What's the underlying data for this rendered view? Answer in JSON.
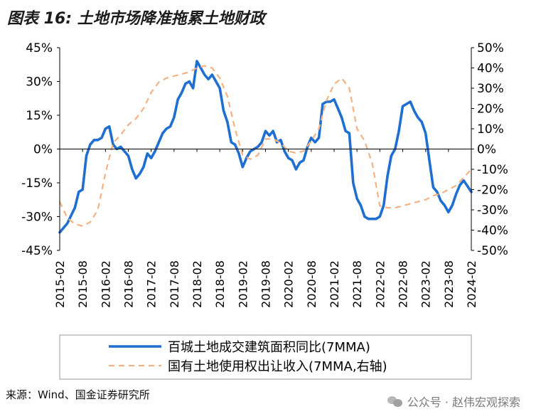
{
  "figure": {
    "title": "图表 16: 土地市场降准拖累土地财政",
    "source": "来源：Wind、国金证券研究所",
    "watermark": "公众号 · 赵伟宏观探索",
    "watermark_icon": "wechat-icon"
  },
  "colors": {
    "series1": "#1e6fd0",
    "series2": "#f4b183",
    "axis": "#000000",
    "border": "#9a9a9a"
  },
  "chart_data": {
    "type": "line",
    "x": [
      "2015-02",
      "2015-08",
      "2016-02",
      "2016-08",
      "2017-02",
      "2017-08",
      "2018-02",
      "2018-08",
      "2019-02",
      "2019-08",
      "2020-02",
      "2020-08",
      "2021-02",
      "2021-08",
      "2022-02",
      "2022-08",
      "2023-02",
      "2023-08",
      "2024-02"
    ],
    "x_start": "2015-02",
    "x_end": "2024-02",
    "y_left": {
      "ticks": [
        "45%",
        "30%",
        "15%",
        "0%",
        "-15%",
        "-30%",
        "-45%"
      ],
      "ylim": [
        -45,
        45
      ]
    },
    "y_right": {
      "ticks": [
        "50%",
        "40%",
        "30%",
        "20%",
        "10%",
        "0%",
        "-10%",
        "-20%",
        "-30%",
        "-40%",
        "-50%"
      ],
      "ylim": [
        -50,
        50
      ]
    },
    "series": [
      {
        "name": "百城土地成交建筑面积同比(7MMA)",
        "axis": "left",
        "style": "solid",
        "points": [
          [
            "2015-02",
            -37
          ],
          [
            "2015-04",
            -33
          ],
          [
            "2015-06",
            -26
          ],
          [
            "2015-07",
            -19
          ],
          [
            "2015-08",
            -18
          ],
          [
            "2015-09",
            -3
          ],
          [
            "2015-10",
            2
          ],
          [
            "2015-11",
            4
          ],
          [
            "2015-12",
            4
          ],
          [
            "2016-01",
            5
          ],
          [
            "2016-02",
            9
          ],
          [
            "2016-03",
            10
          ],
          [
            "2016-04",
            2
          ],
          [
            "2016-05",
            0
          ],
          [
            "2016-06",
            1
          ],
          [
            "2016-07",
            -1
          ],
          [
            "2016-08",
            -3
          ],
          [
            "2016-09",
            -9
          ],
          [
            "2016-10",
            -13
          ],
          [
            "2016-11",
            -11
          ],
          [
            "2016-12",
            -8
          ],
          [
            "2017-01",
            -2
          ],
          [
            "2017-02",
            -4
          ],
          [
            "2017-03",
            -1
          ],
          [
            "2017-04",
            3
          ],
          [
            "2017-05",
            7
          ],
          [
            "2017-06",
            9
          ],
          [
            "2017-07",
            10
          ],
          [
            "2017-08",
            14
          ],
          [
            "2017-09",
            22
          ],
          [
            "2017-10",
            25
          ],
          [
            "2017-11",
            29
          ],
          [
            "2017-12",
            30
          ],
          [
            "2018-01",
            27
          ],
          [
            "2018-02",
            39
          ],
          [
            "2018-03",
            36
          ],
          [
            "2018-04",
            33
          ],
          [
            "2018-05",
            31
          ],
          [
            "2018-06",
            33
          ],
          [
            "2018-07",
            30
          ],
          [
            "2018-08",
            27
          ],
          [
            "2018-09",
            17
          ],
          [
            "2018-10",
            12
          ],
          [
            "2018-11",
            3
          ],
          [
            "2018-12",
            2
          ],
          [
            "2019-01",
            -2
          ],
          [
            "2019-02",
            -8
          ],
          [
            "2019-03",
            -4
          ],
          [
            "2019-04",
            -1
          ],
          [
            "2019-05",
            0
          ],
          [
            "2019-06",
            1
          ],
          [
            "2019-07",
            3
          ],
          [
            "2019-08",
            8
          ],
          [
            "2019-09",
            6
          ],
          [
            "2019-10",
            8
          ],
          [
            "2019-11",
            3
          ],
          [
            "2019-12",
            4
          ],
          [
            "2020-01",
            -1
          ],
          [
            "2020-02",
            -4
          ],
          [
            "2020-03",
            -5
          ],
          [
            "2020-04",
            -9
          ],
          [
            "2020-05",
            -6
          ],
          [
            "2020-06",
            -5
          ],
          [
            "2020-07",
            1
          ],
          [
            "2020-08",
            5
          ],
          [
            "2020-09",
            3
          ],
          [
            "2020-10",
            5
          ],
          [
            "2020-11",
            20
          ],
          [
            "2020-12",
            21
          ],
          [
            "2021-01",
            21
          ],
          [
            "2021-02",
            22
          ],
          [
            "2021-03",
            18
          ],
          [
            "2021-04",
            14
          ],
          [
            "2021-05",
            8
          ],
          [
            "2021-06",
            7
          ],
          [
            "2021-07",
            -15
          ],
          [
            "2021-08",
            -22
          ],
          [
            "2021-09",
            -25
          ],
          [
            "2021-10",
            -30
          ],
          [
            "2021-11",
            -31
          ],
          [
            "2021-12",
            -31
          ],
          [
            "2022-01",
            -31
          ],
          [
            "2022-02",
            -30
          ],
          [
            "2022-03",
            -25
          ],
          [
            "2022-04",
            -12
          ],
          [
            "2022-05",
            -3
          ],
          [
            "2022-06",
            0
          ],
          [
            "2022-07",
            8
          ],
          [
            "2022-08",
            19
          ],
          [
            "2022-09",
            20
          ],
          [
            "2022-10",
            21
          ],
          [
            "2022-11",
            17
          ],
          [
            "2022-12",
            14
          ],
          [
            "2023-01",
            12
          ],
          [
            "2023-02",
            7
          ],
          [
            "2023-03",
            -5
          ],
          [
            "2023-04",
            -17
          ],
          [
            "2023-05",
            -19
          ],
          [
            "2023-06",
            -23
          ],
          [
            "2023-07",
            -25
          ],
          [
            "2023-08",
            -28
          ],
          [
            "2023-09",
            -25
          ],
          [
            "2023-10",
            -20
          ],
          [
            "2023-11",
            -16
          ],
          [
            "2023-12",
            -14
          ],
          [
            "2024-02",
            -19
          ]
        ]
      },
      {
        "name": "国有土地使用权出让收入(7MMA,右轴)",
        "axis": "right",
        "style": "dashed",
        "points": [
          [
            "2015-02",
            -26
          ],
          [
            "2015-04",
            -34
          ],
          [
            "2015-06",
            -37
          ],
          [
            "2015-08",
            -38
          ],
          [
            "2015-10",
            -36
          ],
          [
            "2015-12",
            -30
          ],
          [
            "2016-02",
            -12
          ],
          [
            "2016-04",
            3
          ],
          [
            "2016-06",
            7
          ],
          [
            "2016-08",
            12
          ],
          [
            "2016-10",
            15
          ],
          [
            "2016-12",
            20
          ],
          [
            "2017-02",
            28
          ],
          [
            "2017-04",
            33
          ],
          [
            "2017-06",
            35
          ],
          [
            "2017-08",
            36
          ],
          [
            "2017-10",
            37
          ],
          [
            "2017-12",
            38
          ],
          [
            "2018-02",
            40
          ],
          [
            "2018-04",
            41
          ],
          [
            "2018-06",
            40
          ],
          [
            "2018-08",
            35
          ],
          [
            "2018-10",
            26
          ],
          [
            "2018-12",
            10
          ],
          [
            "2019-02",
            -3
          ],
          [
            "2019-04",
            -5
          ],
          [
            "2019-06",
            -3
          ],
          [
            "2019-08",
            5
          ],
          [
            "2019-10",
            5
          ],
          [
            "2019-12",
            3
          ],
          [
            "2020-02",
            -1
          ],
          [
            "2020-04",
            -2
          ],
          [
            "2020-06",
            -1
          ],
          [
            "2020-08",
            4
          ],
          [
            "2020-10",
            10
          ],
          [
            "2020-12",
            24
          ],
          [
            "2021-02",
            32
          ],
          [
            "2021-04",
            35
          ],
          [
            "2021-06",
            30
          ],
          [
            "2021-08",
            10
          ],
          [
            "2021-10",
            4
          ],
          [
            "2021-12",
            -7
          ],
          [
            "2022-02",
            -28
          ],
          [
            "2022-04",
            -29
          ],
          [
            "2022-06",
            -29
          ],
          [
            "2022-08",
            -28
          ],
          [
            "2022-10",
            -27
          ],
          [
            "2022-12",
            -26
          ],
          [
            "2023-02",
            -25
          ],
          [
            "2023-04",
            -23
          ],
          [
            "2023-06",
            -22
          ],
          [
            "2023-08",
            -20
          ],
          [
            "2023-10",
            -18
          ],
          [
            "2023-12",
            -14
          ],
          [
            "2024-02",
            -10
          ]
        ]
      }
    ],
    "legend_position": "bottom",
    "grid": false
  }
}
